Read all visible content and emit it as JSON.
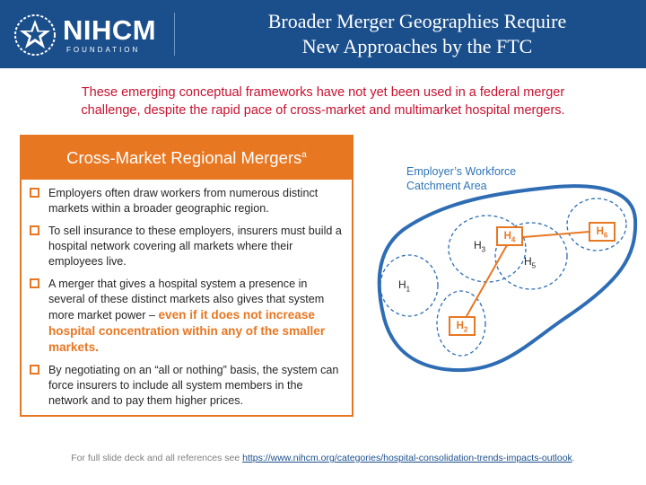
{
  "header": {
    "logo_name": "NIHCM",
    "logo_sub": "FOUNDATION",
    "title_line1": "Broader Merger Geographies Require",
    "title_line2": "New Approaches by the FTC",
    "background_color": "#1b4f8c"
  },
  "subtitle": {
    "line1": "These emerging conceptual frameworks have not yet been used in a federal merger",
    "line2": "challenge, despite the rapid pace of cross-market and multimarket hospital mergers.",
    "color": "#c8102e"
  },
  "panel": {
    "title": "Cross-Market Regional Mergers",
    "title_sup": "a",
    "accent_color": "#e87722",
    "bullets": [
      {
        "text": "Employers often draw workers from numerous distinct markets within a broader geographic region."
      },
      {
        "text": "To sell insurance to these employers, insurers must build a hospital network covering all markets where their employees live."
      },
      {
        "text": "A merger that gives a hospital system a presence in several of these distinct markets also gives that system more market power – ",
        "emphasis": "even if it does not increase hospital concentration within any of the smaller markets."
      },
      {
        "text": "By negotiating on an “all or nothing” basis, the system can force insurers to include all system members in the network and to pay them higher prices."
      }
    ]
  },
  "diagram": {
    "label_line1": "Employer’s Workforce",
    "label_line2": "Catchment Area",
    "label_color": "#2e75b6",
    "hospital_prefix": "H",
    "nodes": [
      {
        "id": "H1",
        "num": "1",
        "boxed": false
      },
      {
        "id": "H2",
        "num": "2",
        "boxed": true
      },
      {
        "id": "H3",
        "num": "3",
        "boxed": false
      },
      {
        "id": "H4",
        "num": "4",
        "boxed": true
      },
      {
        "id": "H5",
        "num": "5",
        "boxed": false
      },
      {
        "id": "H6",
        "num": "6",
        "boxed": true
      }
    ],
    "links": [
      [
        "H4",
        "H6"
      ],
      [
        "H4",
        "H2"
      ]
    ]
  },
  "footer": {
    "text": "For full slide deck and all references see ",
    "link": "https://www.nihcm.org/categories/hospital-consolidation-trends-impacts-outlook",
    "suffix": "."
  }
}
